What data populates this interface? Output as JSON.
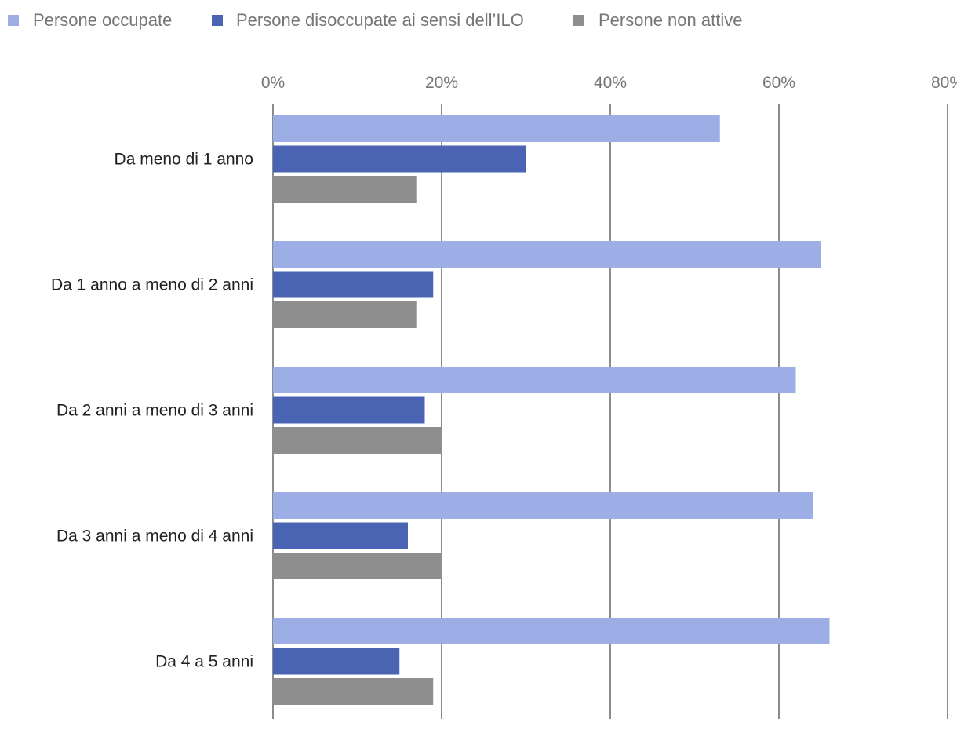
{
  "chart_data": {
    "type": "bar",
    "orientation": "horizontal",
    "categories": [
      "Da meno di 1 anno",
      "Da 1 anno a meno di 2 anni",
      "Da 2 anni a meno di 3 anni",
      "Da 3 anni a meno di 4 anni",
      "Da 4 a 5 anni"
    ],
    "series": [
      {
        "name": "Persone occupate",
        "color": "#9daee6",
        "values": [
          53,
          65,
          62,
          64,
          66
        ]
      },
      {
        "name": "Persone disoccupate ai sensi dell’ILO",
        "color": "#4a63b3",
        "values": [
          30,
          19,
          18,
          16,
          15
        ]
      },
      {
        "name": "Persone non attive",
        "color": "#8e8e8e",
        "values": [
          17,
          17,
          20,
          20,
          19
        ]
      }
    ],
    "xlim": [
      0,
      80
    ],
    "ticks": [
      0,
      20,
      40,
      60,
      80
    ],
    "tick_labels": [
      "0%",
      "20%",
      "40%",
      "60%",
      "80%"
    ],
    "axis_position": "top",
    "grid": true,
    "legend_position": "top-left",
    "gridline_color": "#666666"
  }
}
